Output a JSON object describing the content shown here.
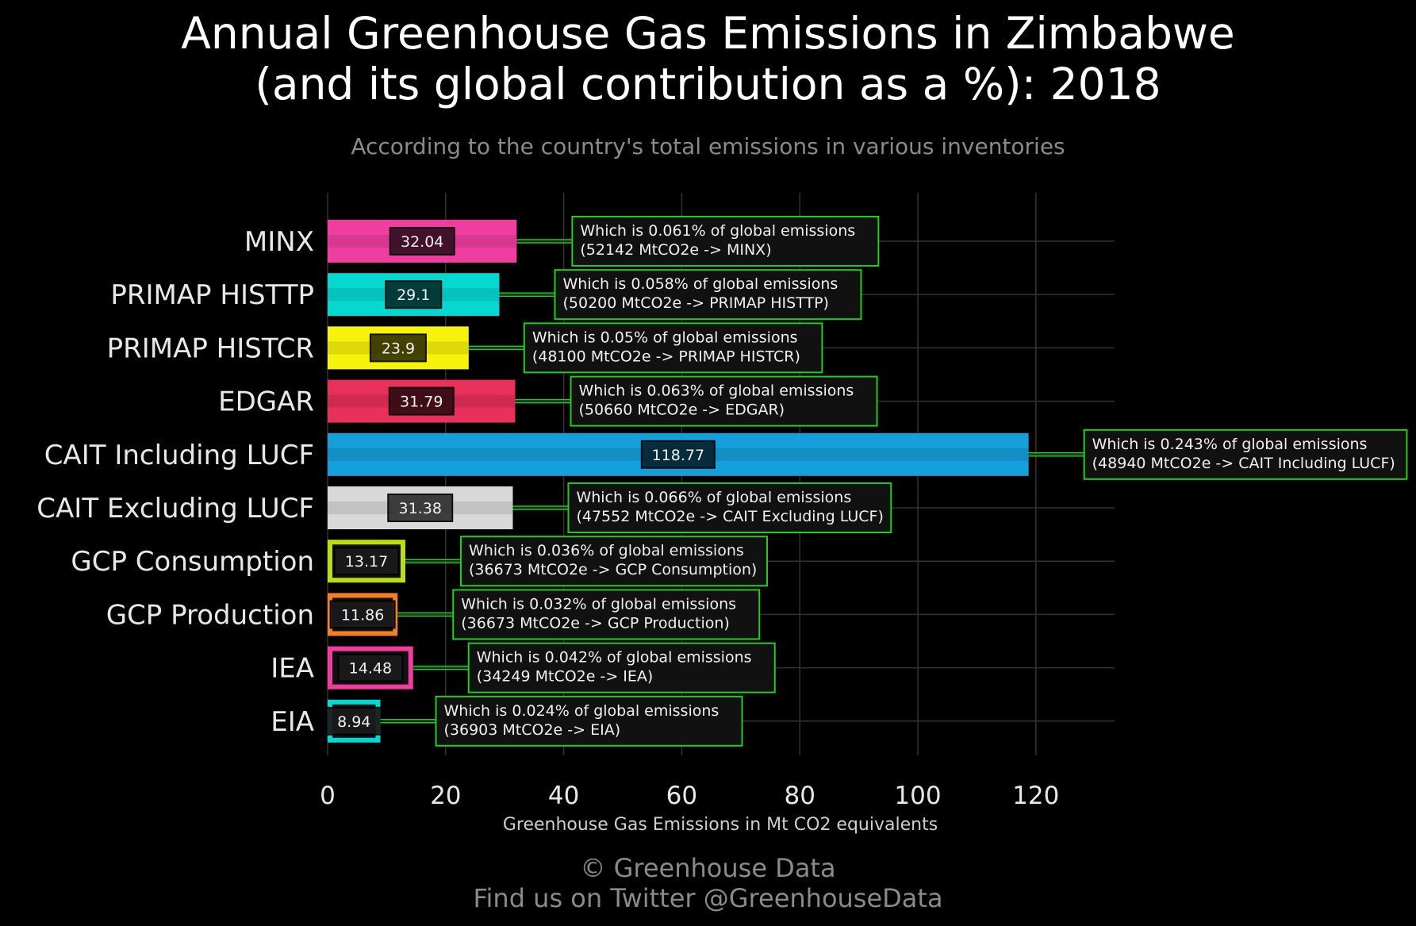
{
  "title_line1": "Annual Greenhouse Gas Emissions in Zimbabwe",
  "title_line2": "(and its global contribution as a %): 2018",
  "subtitle": "According to the country's total emissions in various inventories",
  "footer_line1": "© Greenhouse Data",
  "footer_line2": "Find us on Twitter @GreenhouseData",
  "chart_data": {
    "type": "bar",
    "orientation": "horizontal",
    "xlabel": "Greenhouse Gas Emissions in Mt CO2 equivalents",
    "ylabel": "",
    "xlim": [
      0,
      134
    ],
    "xticks": [
      0,
      20,
      40,
      60,
      80,
      100,
      120
    ],
    "grid": true,
    "categories": [
      "MINX",
      "PRIMAP HISTTP",
      "PRIMAP HISTCR",
      "EDGAR",
      "CAIT Including LUCF",
      "CAIT Excluding LUCF",
      "GCP Consumption",
      "GCP Production",
      "IEA",
      "EIA"
    ],
    "values": [
      32.04,
      29.1,
      23.9,
      31.79,
      118.77,
      31.38,
      13.17,
      11.86,
      14.48,
      8.94
    ],
    "value_labels": [
      "32.04",
      "29.1",
      "23.9",
      "31.79",
      "118.77",
      "31.38",
      "13.17",
      "11.86",
      "14.48",
      "8.94"
    ],
    "colors": [
      "#f03ea0",
      "#05d8d0",
      "#f7f20a",
      "#e8305a",
      "#15a0dc",
      "#d8d8d8",
      "#b8e010",
      "#f08020",
      "#f03ea0",
      "#05d8d0"
    ],
    "annotations_line1": [
      "Which is 0.061% of global emissions",
      "Which is 0.058% of global emissions",
      "Which is 0.05% of global emissions",
      "Which is 0.063% of global emissions",
      "Which is 0.243% of global emissions",
      "Which is 0.066% of global emissions",
      "Which is 0.036% of global emissions",
      "Which is 0.032% of global emissions",
      "Which is 0.042% of global emissions",
      "Which is 0.024% of global emissions"
    ],
    "annotations_line2": [
      "(52142 MtCO2e -> MINX)",
      "(50200 MtCO2e -> PRIMAP HISTTP)",
      "(48100 MtCO2e -> PRIMAP HISTCR)",
      "(50660 MtCO2e -> EDGAR)",
      "(48940 MtCO2e -> CAIT Including LUCF)",
      "(47552 MtCO2e -> CAIT Excluding LUCF)",
      "(36673 MtCO2e -> GCP Consumption)",
      "(36673 MtCO2e -> GCP Production)",
      "(34249 MtCO2e -> IEA)",
      "(36903 MtCO2e -> EIA)"
    ],
    "annotation_border_color": "#22cc22",
    "grid_color": "#333333"
  }
}
